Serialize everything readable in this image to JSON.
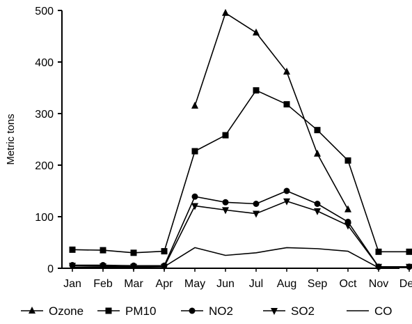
{
  "chart_data": {
    "type": "line",
    "title": "",
    "xlabel": "",
    "ylabel": "Metric tons",
    "ylim": [
      0,
      500
    ],
    "yticks": [
      0,
      100,
      200,
      300,
      400,
      500
    ],
    "grid": false,
    "legend_position": "bottom",
    "categories": [
      "Jan",
      "Feb",
      "Mar",
      "Apr",
      "May",
      "Jun",
      "Jul",
      "Aug",
      "Sep",
      "Oct",
      "Nov",
      "Dec"
    ],
    "series": [
      {
        "name": "Ozone",
        "marker": "triangle-up",
        "values": [
          null,
          null,
          null,
          null,
          315,
          495,
          457,
          381,
          222,
          114,
          null,
          null
        ]
      },
      {
        "name": "PM10",
        "marker": "square",
        "values": [
          36,
          35,
          30,
          33,
          227,
          258,
          345,
          318,
          268,
          209,
          32,
          32
        ]
      },
      {
        "name": "NO2",
        "marker": "circle",
        "values": [
          6,
          6,
          5,
          5,
          139,
          128,
          125,
          150,
          125,
          90,
          3,
          3
        ]
      },
      {
        "name": "SO2",
        "marker": "triangle-down",
        "values": [
          5,
          4,
          3,
          3,
          121,
          113,
          106,
          130,
          111,
          83,
          3,
          3
        ]
      },
      {
        "name": "CO",
        "marker": "none",
        "values": [
          2,
          2,
          2,
          3,
          40,
          25,
          30,
          40,
          38,
          33,
          1,
          1
        ]
      }
    ]
  }
}
